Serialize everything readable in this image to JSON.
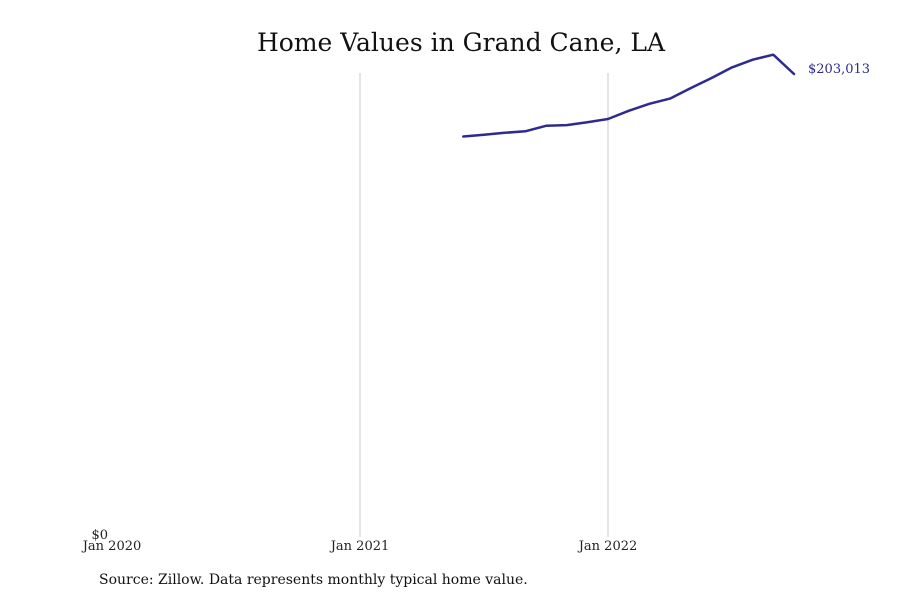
{
  "chart_data": {
    "type": "line",
    "title": "Home Values in Grand Cane, LA",
    "xlabel": "",
    "ylabel": "",
    "x_tick_labels": [
      "Jan 2020",
      "Jan 2021",
      "Jan 2022"
    ],
    "y_tick_labels": [
      "$0"
    ],
    "grid_x": true,
    "grid_y": false,
    "xlim": [
      "2020-01",
      "2022-10"
    ],
    "ylim": [
      0,
      203013
    ],
    "series": [
      {
        "color": "#2e2a8f",
        "end_label": "$203,013",
        "points": [
          {
            "x": "2021-06",
            "y": 175500
          },
          {
            "x": "2021-07",
            "y": 176300
          },
          {
            "x": "2021-08",
            "y": 177100
          },
          {
            "x": "2021-09",
            "y": 177800
          },
          {
            "x": "2021-10",
            "y": 180200
          },
          {
            "x": "2021-11",
            "y": 180500
          },
          {
            "x": "2021-12",
            "y": 181800
          },
          {
            "x": "2022-01",
            "y": 183200
          },
          {
            "x": "2022-02",
            "y": 186800
          },
          {
            "x": "2022-03",
            "y": 189900
          },
          {
            "x": "2022-04",
            "y": 192200
          },
          {
            "x": "2022-05",
            "y": 196800
          },
          {
            "x": "2022-06",
            "y": 201200
          },
          {
            "x": "2022-07",
            "y": 205900
          },
          {
            "x": "2022-08",
            "y": 209300
          },
          {
            "x": "2022-09",
            "y": 211500
          },
          {
            "x": "2022-10",
            "y": 203013
          }
        ]
      }
    ]
  },
  "source_note": "Source: Zillow. Data represents monthly typical home value."
}
